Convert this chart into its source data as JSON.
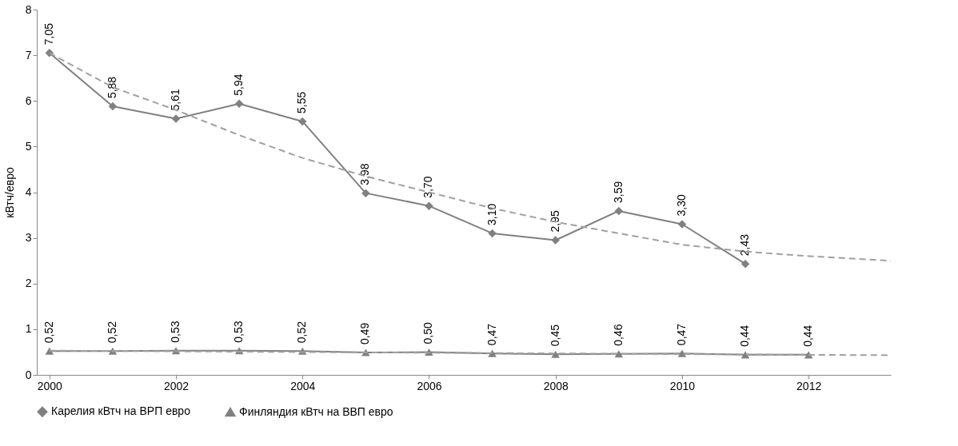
{
  "chart_data": {
    "type": "line",
    "ylabel": "кВтч/евро",
    "xlim": [
      1999.8,
      2013.3
    ],
    "xticks": [
      2000,
      2002,
      2004,
      2006,
      2008,
      2010,
      2012
    ],
    "ylim": [
      0,
      8
    ],
    "yticks": [
      0,
      1,
      2,
      3,
      4,
      5,
      6,
      7,
      8
    ],
    "grid": false,
    "legend": "bottom",
    "line_style": "solid",
    "series": [
      {
        "name": "Карелия кВтч на ВРП евро",
        "color": "#808080",
        "marker": "diamond",
        "x": [
          2000,
          2001,
          2002,
          2003,
          2004,
          2005,
          2006,
          2007,
          2008,
          2009,
          2010,
          2011
        ],
        "values": [
          7.05,
          5.88,
          5.61,
          5.94,
          5.55,
          3.98,
          3.7,
          3.1,
          2.95,
          3.59,
          3.3,
          2.43
        ],
        "value_labels": [
          "7,05",
          "5,88",
          "5,61",
          "5,94",
          "5,55",
          "3,98",
          "3,70",
          "3,10",
          "2,95",
          "3,59",
          "3,30",
          "2,43"
        ]
      },
      {
        "name": "Финляндия кВтч на ВВП евро",
        "color": "#808080",
        "marker": "triangle",
        "x": [
          2000,
          2001,
          2002,
          2003,
          2004,
          2005,
          2006,
          2007,
          2008,
          2009,
          2010,
          2011,
          2012
        ],
        "values": [
          0.52,
          0.52,
          0.53,
          0.53,
          0.52,
          0.49,
          0.5,
          0.47,
          0.45,
          0.46,
          0.47,
          0.44,
          0.44
        ],
        "value_labels": [
          "0,52",
          "0,52",
          "0,53",
          "0,53",
          "0,52",
          "0,49",
          "0,50",
          "0,47",
          "0,45",
          "0,46",
          "0,47",
          "0,44",
          "0,44"
        ]
      },
      {
        "type": "line",
        "color": "#a0a0a0",
        "marker": "none",
        "line_style": "dashed",
        "x": [
          2000,
          2001,
          2002,
          2003,
          2004,
          2005,
          2006,
          2007,
          2008,
          2009,
          2010,
          2011,
          2012,
          2013.3
        ],
        "values": [
          7.05,
          6.3,
          5.8,
          5.25,
          4.75,
          4.35,
          4.0,
          3.65,
          3.35,
          3.1,
          2.85,
          2.7,
          2.6,
          2.5
        ]
      },
      {
        "type": "line",
        "color": "#a0a0a0",
        "marker": "none",
        "line_style": "dashed",
        "x": [
          2000,
          2013.3
        ],
        "values": [
          0.53,
          0.43
        ]
      }
    ]
  }
}
